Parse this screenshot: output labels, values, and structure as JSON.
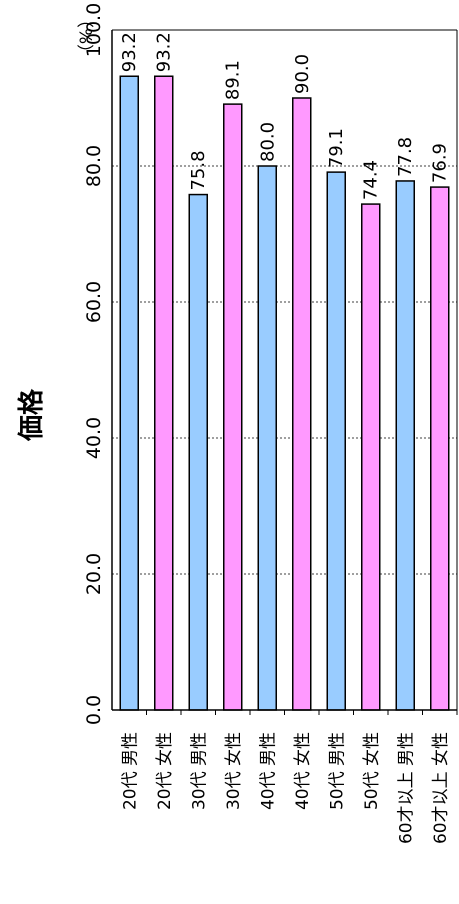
{
  "chart_data": {
    "type": "bar",
    "orientation": "vertical-text-rotated",
    "ylabel": "価格",
    "unit_label": "（%）",
    "ylim": [
      0,
      100
    ],
    "yticks": [
      "0.0",
      "20.0",
      "40.0",
      "60.0",
      "80.0",
      "100.0"
    ],
    "grid": "dotted",
    "categories": [
      "20代 男性",
      "20代 女性",
      "30代 男性",
      "30代 女性",
      "40代 男性",
      "40代 女性",
      "50代 男性",
      "50代 女性",
      "60才以上 男性",
      "60才以上 女性"
    ],
    "values": [
      93.2,
      93.2,
      75.8,
      89.1,
      80.0,
      90.0,
      79.1,
      74.4,
      77.8,
      76.9
    ],
    "value_labels": [
      "93.2",
      "93.2",
      "75.8",
      "89.1",
      "80.0",
      "90.0",
      "79.1",
      "74.4",
      "77.8",
      "76.9"
    ],
    "bar_colors": [
      "#99ccff",
      "#ff99ff",
      "#99ccff",
      "#ff99ff",
      "#99ccff",
      "#ff99ff",
      "#99ccff",
      "#ff99ff",
      "#99ccff",
      "#ff99ff"
    ]
  }
}
